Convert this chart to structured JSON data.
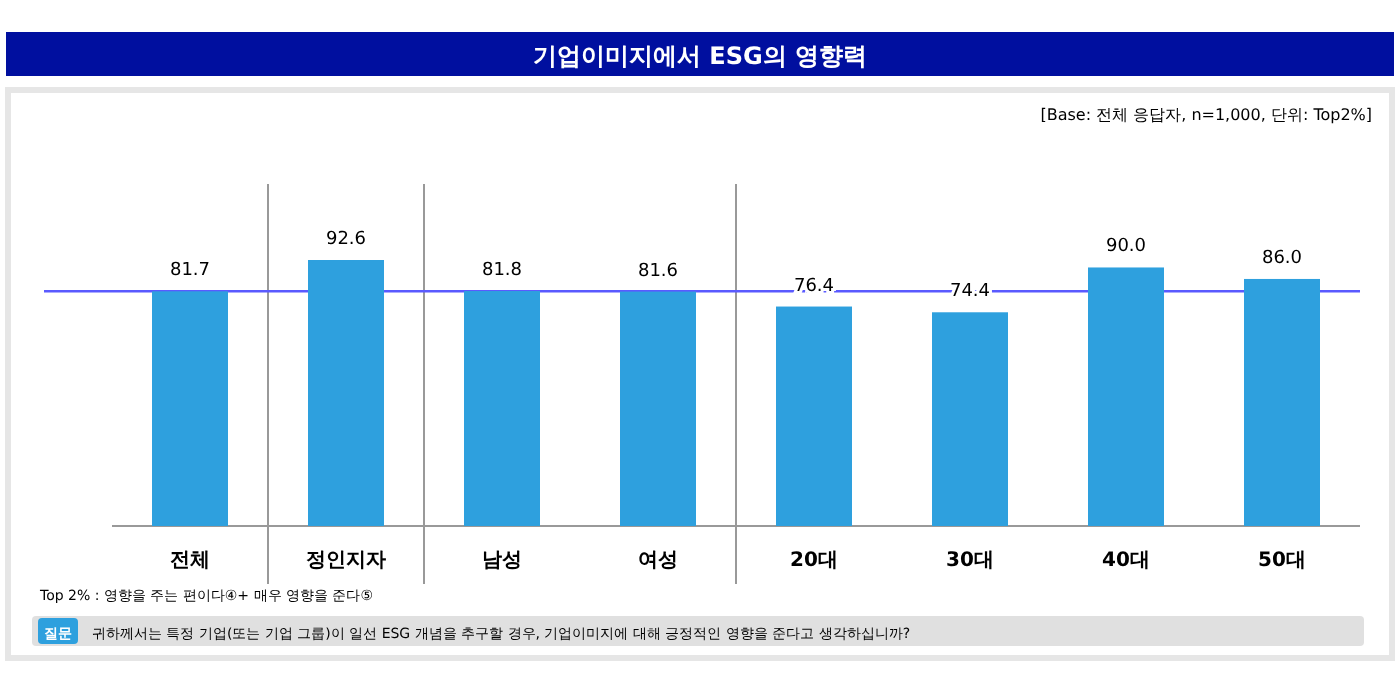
{
  "chart_data": {
    "type": "bar",
    "title": "기업이미지에서 ESG의 영향력",
    "subtitle": "[Base: 전체 응답자, n=1,000, 단위: Top2%]",
    "categories": [
      "전체",
      "정인지자",
      "남성",
      "여성",
      "20대",
      "30대",
      "40대",
      "50대"
    ],
    "values": [
      81.7,
      92.6,
      81.8,
      81.6,
      76.4,
      74.4,
      90.0,
      86.0
    ],
    "value_labels": [
      "81.7",
      "92.6",
      "81.8",
      "81.6",
      "76.4",
      "74.4",
      "90.0",
      "86.0"
    ],
    "color": "#2ea0de",
    "ref_lines": [
      {
        "axis": "y",
        "value": 81.7,
        "color": "#5a5aff"
      }
    ],
    "annotations": [
      "Top 2% : 영향을 주는 편이다④+ 매우 영향을 준다⑤",
      "질문",
      "귀하께서는 특정 기업(또는 기업 그룹)이 일선 ESG 개념을 추구할 경우, 기업이미지에 대해 긍정적인 영향을 준다고 생각하십니까?"
    ]
  }
}
